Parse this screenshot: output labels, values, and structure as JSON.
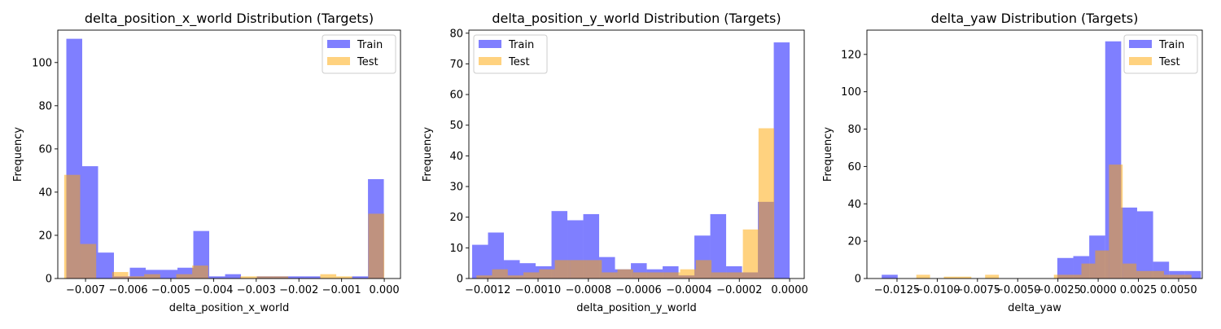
{
  "figure": {
    "colors": {
      "train": "#0000ff",
      "test": "#ffa500"
    },
    "alpha": 0.5
  },
  "chart_data": [
    {
      "type": "bar",
      "title": "delta_position_x_world Distribution (Targets)",
      "xlabel": "delta_position_x_world",
      "ylabel": "Frequency",
      "xlim": [
        -0.00765,
        0.00038
      ],
      "ylim": [
        0,
        115
      ],
      "xticks": [
        -0.007,
        -0.006,
        -0.005,
        -0.004,
        -0.003,
        -0.002,
        -0.001,
        0.0
      ],
      "xtick_labels": [
        "−0.007",
        "−0.006",
        "−0.005",
        "−0.004",
        "−0.003",
        "−0.002",
        "−0.001",
        "0.000"
      ],
      "yticks": [
        0,
        20,
        40,
        60,
        80,
        100
      ],
      "ytick_labels": [
        "0",
        "20",
        "40",
        "60",
        "80",
        "100"
      ],
      "legend": {
        "position": "top-right",
        "entries": [
          "Train",
          "Test"
        ]
      },
      "series": [
        {
          "name": "Train",
          "bin_start": -0.00745,
          "bin_width": 0.000372,
          "values": [
            111,
            52,
            12,
            1,
            5,
            4,
            4,
            5,
            22,
            1,
            2,
            0,
            1,
            1,
            1,
            1,
            0,
            0,
            1,
            46
          ]
        },
        {
          "name": "Test",
          "bin_start": -0.0075,
          "bin_width": 0.000375,
          "values": [
            48,
            16,
            0,
            3,
            1,
            2,
            0,
            2,
            6,
            0,
            0,
            1,
            1,
            1,
            0,
            0,
            2,
            1,
            0,
            30
          ]
        }
      ]
    },
    {
      "type": "bar",
      "title": "delta_position_y_world Distribution (Targets)",
      "xlabel": "delta_position_y_world",
      "ylabel": "Frequency",
      "xlim": [
        -0.001275,
        5.8e-05
      ],
      "ylim": [
        0,
        81
      ],
      "xticks": [
        -0.0012,
        -0.001,
        -0.0008,
        -0.0006,
        -0.0004,
        -0.0002,
        0.0
      ],
      "xtick_labels": [
        "−0.0012",
        "−0.0010",
        "−0.0008",
        "−0.0006",
        "−0.0004",
        "−0.0002",
        "0.0000"
      ],
      "yticks": [
        0,
        10,
        20,
        30,
        40,
        50,
        60,
        70,
        80
      ],
      "ytick_labels": [
        "0",
        "10",
        "20",
        "30",
        "40",
        "50",
        "60",
        "70",
        "80"
      ],
      "legend": {
        "position": "top-left",
        "entries": [
          "Train",
          "Test"
        ]
      },
      "series": [
        {
          "name": "Train",
          "bin_start": -0.001262,
          "bin_width": 6.31e-05,
          "values": [
            11,
            15,
            6,
            5,
            4,
            22,
            19,
            21,
            7,
            3,
            5,
            3,
            4,
            1,
            14,
            21,
            4,
            2,
            25,
            77
          ]
        },
        {
          "name": "Test",
          "bin_start": -0.001245,
          "bin_width": 6.23e-05,
          "values": [
            1,
            3,
            1,
            2,
            3,
            6,
            6,
            6,
            2,
            3,
            2,
            2,
            2,
            3,
            6,
            2,
            2,
            16,
            49,
            0
          ]
        }
      ]
    },
    {
      "type": "bar",
      "title": "delta_yaw Distribution (Targets)",
      "xlabel": "delta_yaw",
      "ylabel": "Frequency",
      "xlim": [
        -0.01437,
        0.00647
      ],
      "ylim": [
        0,
        133
      ],
      "xticks": [
        -0.0125,
        -0.01,
        -0.0075,
        -0.005,
        -0.0025,
        0.0,
        0.0025,
        0.005
      ],
      "xtick_labels": [
        "−0.0125",
        "−0.0100",
        "−0.0075",
        "−0.0050",
        "−0.0025",
        "0.0000",
        "0.0025",
        "0.0050"
      ],
      "yticks": [
        0,
        20,
        40,
        60,
        80,
        100,
        120
      ],
      "ytick_labels": [
        "0",
        "20",
        "40",
        "60",
        "80",
        "100",
        "120"
      ],
      "legend": {
        "position": "top-right",
        "entries": [
          "Train",
          "Test"
        ]
      },
      "series": [
        {
          "name": "Train",
          "bin_start": -0.01345,
          "bin_width": 0.000992,
          "values": [
            2,
            0,
            0,
            0,
            0,
            0,
            0,
            0,
            0,
            0,
            0,
            11,
            12,
            23,
            127,
            38,
            36,
            9,
            4,
            4
          ]
        },
        {
          "name": "Test",
          "bin_start": -0.0113,
          "bin_width": 0.000855,
          "values": [
            2,
            0,
            1,
            1,
            0,
            2,
            0,
            0,
            0,
            0,
            2,
            2,
            8,
            15,
            61,
            8,
            4,
            4,
            2,
            2
          ]
        }
      ]
    }
  ]
}
